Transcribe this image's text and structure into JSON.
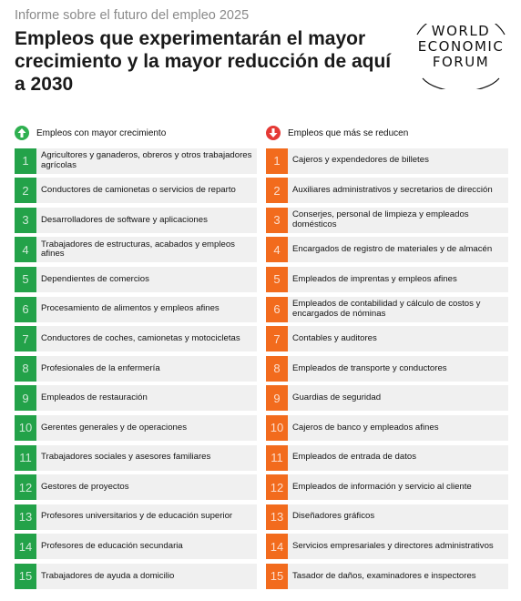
{
  "header": {
    "supertitle": "Informe sobre el futuro del empleo 2025",
    "title": "Empleos que experimentarán el mayor crecimiento y la mayor reducción de aquí a 2030"
  },
  "logo": {
    "line1": "WORLD",
    "line2": "ECONOMIC",
    "line3": "FORUM"
  },
  "colors": {
    "growth": "#23a249",
    "decline": "#f26b1d",
    "up_icon": "#2fb050",
    "down_icon": "#e53935",
    "row_bg": "#f0f0f0"
  },
  "growth": {
    "heading": "Empleos con mayor crecimiento",
    "icon": "arrow-up-icon",
    "items": [
      {
        "rank": "1",
        "label": "Agricultores y ganaderos, obreros y otros trabajadores agrícolas"
      },
      {
        "rank": "2",
        "label": "Conductores de camionetas o servicios de reparto"
      },
      {
        "rank": "3",
        "label": "Desarrolladores de software y aplicaciones"
      },
      {
        "rank": "4",
        "label": "Trabajadores de estructuras, acabados y empleos afines"
      },
      {
        "rank": "5",
        "label": "Dependientes de comercios"
      },
      {
        "rank": "6",
        "label": "Procesamiento de alimentos y empleos afines"
      },
      {
        "rank": "7",
        "label": "Conductores de coches, camionetas y motocicletas"
      },
      {
        "rank": "8",
        "label": "Profesionales de la enfermería"
      },
      {
        "rank": "9",
        "label": "Empleados de restauración"
      },
      {
        "rank": "10",
        "label": "Gerentes generales y de operaciones"
      },
      {
        "rank": "11",
        "label": "Trabajadores sociales y asesores familiares"
      },
      {
        "rank": "12",
        "label": "Gestores de proyectos"
      },
      {
        "rank": "13",
        "label": "Profesores universitarios y de educación superior"
      },
      {
        "rank": "14",
        "label": "Profesores de educación secundaria"
      },
      {
        "rank": "15",
        "label": "Trabajadores de ayuda a domicilio"
      }
    ]
  },
  "decline": {
    "heading": "Empleos que más se reducen",
    "icon": "arrow-down-icon",
    "items": [
      {
        "rank": "1",
        "label": "Cajeros y expendedores de billetes"
      },
      {
        "rank": "2",
        "label": "Auxiliares administrativos y secretarios de dirección"
      },
      {
        "rank": "3",
        "label": "Conserjes, personal de limpieza y empleados domésticos"
      },
      {
        "rank": "4",
        "label": "Encargados de registro de materiales y de almacén"
      },
      {
        "rank": "5",
        "label": "Empleados de imprentas y empleos afines"
      },
      {
        "rank": "6",
        "label": "Empleados de contabilidad y cálculo de costos y encargados de nóminas"
      },
      {
        "rank": "7",
        "label": "Contables y auditores"
      },
      {
        "rank": "8",
        "label": "Empleados de transporte y conductores"
      },
      {
        "rank": "9",
        "label": "Guardias de seguridad"
      },
      {
        "rank": "10",
        "label": "Cajeros de banco y empleados afines"
      },
      {
        "rank": "11",
        "label": "Empleados de entrada de datos"
      },
      {
        "rank": "12",
        "label": "Empleados de información y servicio al cliente"
      },
      {
        "rank": "13",
        "label": "Diseñadores gráficos"
      },
      {
        "rank": "14",
        "label": "Servicios empresariales y directores administrativos"
      },
      {
        "rank": "15",
        "label": "Tasador de daños, examinadores e inspectores"
      }
    ]
  }
}
